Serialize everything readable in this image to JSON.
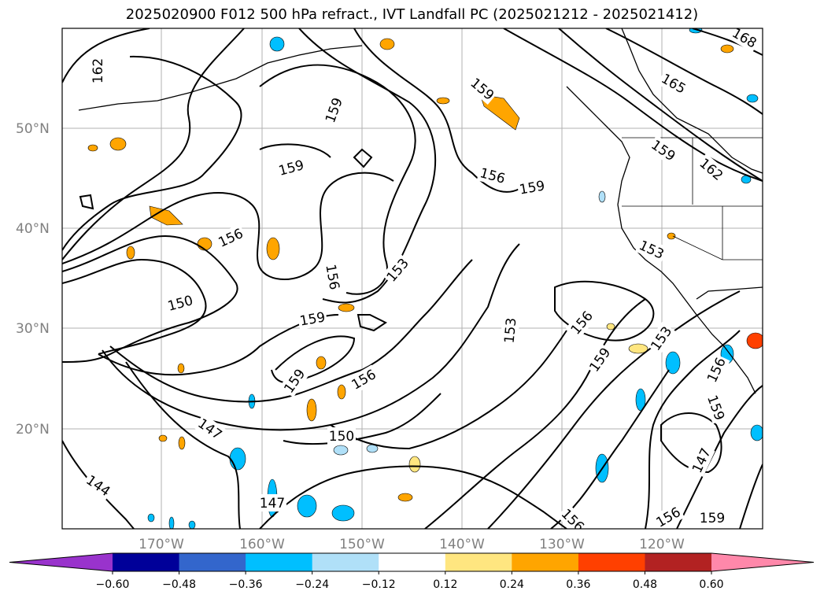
{
  "title": "2025020900 F012 500 hPa refract., IVT Landfall PC (2025021212 - 2025021412)",
  "map": {
    "lat_labels": [
      "50°N",
      "40°N",
      "30°N",
      "20°N"
    ],
    "lon_labels": [
      "170°W",
      "160°W",
      "150°W",
      "140°W",
      "130°W",
      "120°W"
    ],
    "contour_interval": 3,
    "contour_labels": [
      "162",
      "159",
      "159",
      "159",
      "156",
      "159",
      "165",
      "168",
      "159",
      "162",
      "156",
      "153",
      "153",
      "150",
      "156",
      "159",
      "153",
      "156",
      "159",
      "153",
      "159",
      "156",
      "156",
      "159",
      "156",
      "147",
      "150",
      "144",
      "147",
      "156",
      "159",
      "147"
    ]
  },
  "colorbar": {
    "ticks": [
      "−0.60",
      "−0.48",
      "−0.36",
      "−0.24",
      "−0.12",
      "0.12",
      "0.24",
      "0.36",
      "0.48",
      "0.60"
    ],
    "colors": [
      "#9933cc",
      "#000099",
      "#3366cc",
      "#00bfff",
      "#b0e0f8",
      "#ffffff",
      "#ffe680",
      "#ffa500",
      "#ff4000",
      "#b22222",
      "#ff88aa"
    ]
  }
}
